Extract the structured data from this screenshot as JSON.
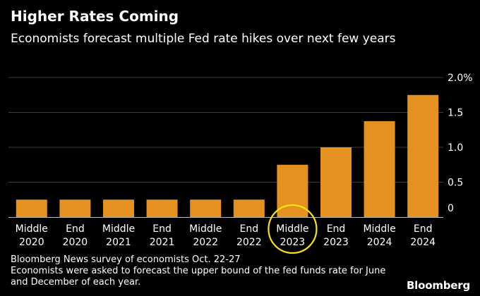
{
  "header": {
    "title": "Higher Rates Coming",
    "subtitle": "Economists forecast multiple Fed rate hikes over next few years"
  },
  "notes": {
    "source": "Bloomberg News survey of economists Oct. 22-27",
    "line1": "Economists were asked to forecast the upper bound of the fed funds rate for June",
    "line2": "and December of each year."
  },
  "brand": "Bloomberg",
  "colors": {
    "bar": "#E3921F",
    "highlight": "#F5E11B",
    "grid": "#3c3c3c",
    "axis": "#bbbbbb"
  },
  "chart_data": {
    "type": "bar",
    "categories": [
      [
        "Middle",
        "2020"
      ],
      [
        "End",
        "2020"
      ],
      [
        "Middle",
        "2021"
      ],
      [
        "End",
        "2021"
      ],
      [
        "Middle",
        "2022"
      ],
      [
        "End",
        "2022"
      ],
      [
        "Middle",
        "2023"
      ],
      [
        "End",
        "2023"
      ],
      [
        "Middle",
        "2024"
      ],
      [
        "End",
        "2024"
      ]
    ],
    "values": [
      0.25,
      0.25,
      0.25,
      0.25,
      0.25,
      0.25,
      0.75,
      1.0,
      1.375,
      1.75
    ],
    "ylim": [
      0,
      2.0
    ],
    "yticks": [
      0,
      0.5,
      1.0,
      1.5,
      2.0
    ],
    "ytick_labels": [
      "0",
      "0.5",
      "1.0",
      "1.5",
      "2.0%"
    ],
    "yaxis_position": "right",
    "grid": true,
    "highlighted_category_index": 6
  }
}
